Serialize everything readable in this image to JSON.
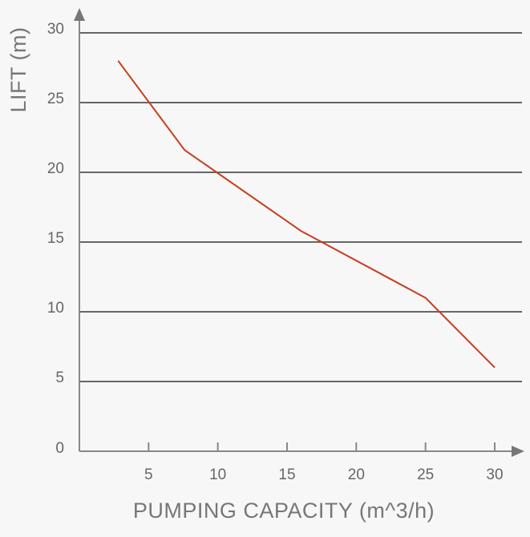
{
  "chart_data": {
    "type": "line",
    "title": "",
    "xlabel": "PUMPING CAPACITY (m^3/h)",
    "ylabel": "LIFT (m)",
    "xlim": [
      0,
      30
    ],
    "ylim": [
      0,
      30
    ],
    "x_ticks": [
      5,
      10,
      15,
      20,
      25,
      30
    ],
    "y_ticks": [
      0,
      5,
      10,
      15,
      20,
      25,
      30
    ],
    "grid": "horizontal",
    "legend": "none",
    "series": [
      {
        "color": "#cc3a1e",
        "points": [
          {
            "x": 2.8,
            "y": 28
          },
          {
            "x": 7.6,
            "y": 21.6
          },
          {
            "x": 16,
            "y": 15.8
          },
          {
            "x": 25,
            "y": 11
          },
          {
            "x": 30,
            "y": 6
          }
        ]
      }
    ],
    "colors": {
      "grid": "#666666",
      "axis": "#888888",
      "line": "#cc3a1e"
    }
  }
}
